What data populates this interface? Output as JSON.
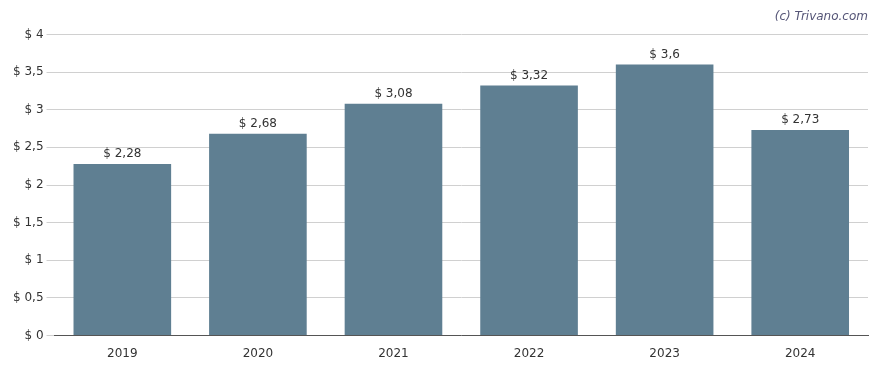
{
  "chart_data": {
    "type": "bar",
    "categories": [
      "2019",
      "2020",
      "2021",
      "2022",
      "2023",
      "2024"
    ],
    "values": [
      2.28,
      2.68,
      3.08,
      3.32,
      3.6,
      2.73
    ],
    "value_labels": [
      "$ 2,28",
      "$ 2,68",
      "$ 3,08",
      "$ 3,32",
      "$ 3,6",
      "$ 2,73"
    ],
    "data_labels": true,
    "color": "#5f7f92",
    "ylim": [
      0,
      4.0
    ],
    "yticks": [
      {
        "value": 0,
        "label": "$ 0"
      },
      {
        "value": 0.5,
        "label": "$ 0,5"
      },
      {
        "value": 1.0,
        "label": "$ 1"
      },
      {
        "value": 1.5,
        "label": "$ 1,5"
      },
      {
        "value": 2.0,
        "label": "$ 2"
      },
      {
        "value": 2.5,
        "label": "$ 2,5"
      },
      {
        "value": 3.0,
        "label": "$ 3"
      },
      {
        "value": 3.5,
        "label": "$ 3,5"
      },
      {
        "value": 4.0,
        "label": "$ 4"
      }
    ],
    "grid": true,
    "annotations": [
      "(c) Trivano.com"
    ]
  }
}
